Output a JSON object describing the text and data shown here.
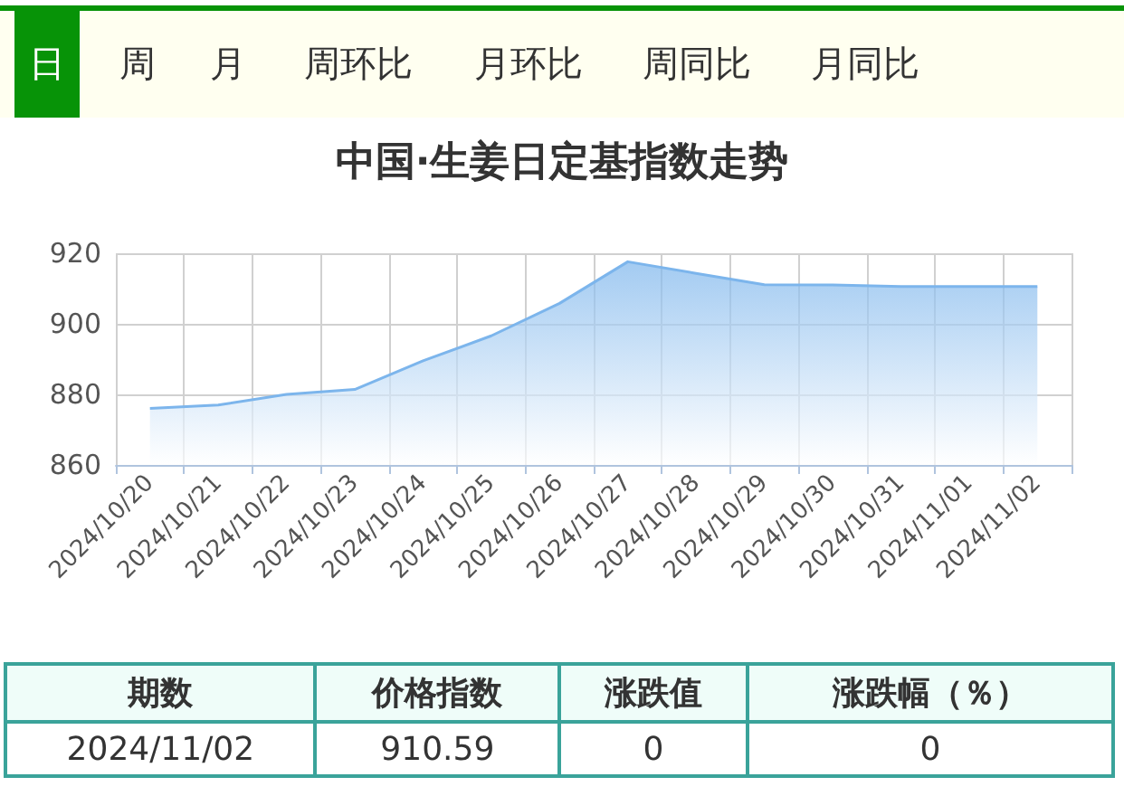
{
  "chart_data": {
    "type": "area",
    "title": "中国·生姜日定基指数走势",
    "categories": [
      "2024/10/20",
      "2024/10/21",
      "2024/10/22",
      "2024/10/23",
      "2024/10/24",
      "2024/10/25",
      "2024/10/26",
      "2024/10/27",
      "2024/10/28",
      "2024/10/29",
      "2024/10/30",
      "2024/10/31",
      "2024/11/01",
      "2024/11/02"
    ],
    "values": [
      876,
      877,
      880,
      881.4,
      889.5,
      896.6,
      905.8,
      917.6,
      914.3,
      911.1,
      911,
      910.6,
      910.6,
      910.59
    ],
    "color": "#7cb5ec",
    "ylim": [
      860,
      920
    ],
    "yticks": [
      860,
      880,
      900,
      920
    ],
    "grid": true,
    "marker": "none",
    "annotations": [
      "日",
      "周",
      "月",
      "周环比",
      "月环比",
      "周同比",
      "月同比",
      "期数",
      "价格指数",
      "涨跌值",
      "涨跌幅（％）",
      "2024/11/02",
      "910.59",
      "0",
      "0"
    ]
  }
}
